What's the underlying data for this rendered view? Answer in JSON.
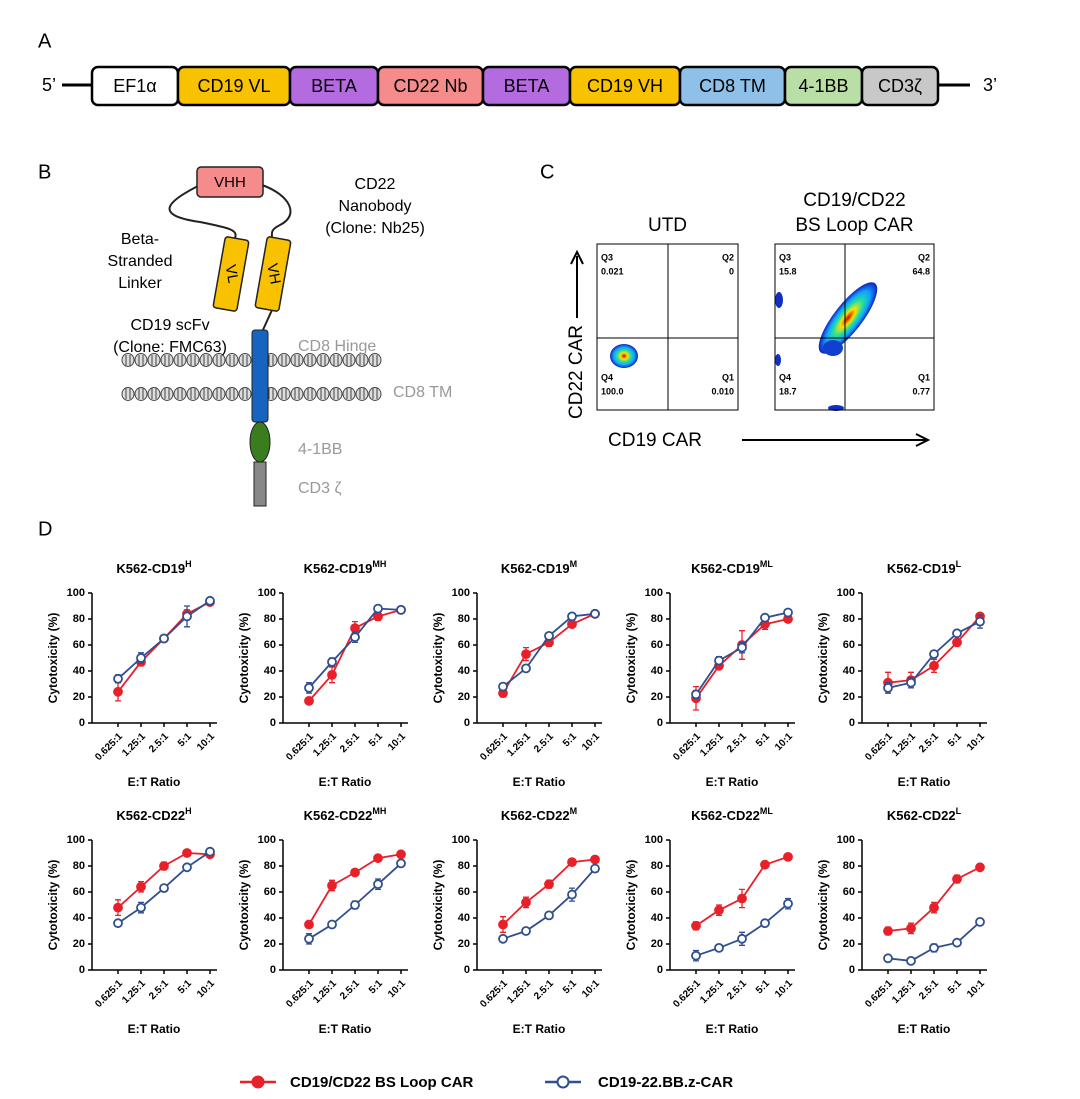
{
  "panel_labels": [
    "A",
    "B",
    "C",
    "D"
  ],
  "construct": {
    "left": "5’",
    "right": "3’",
    "segments": [
      {
        "label": "EF1α",
        "color": "#ffffff"
      },
      {
        "label": "CD19 VL",
        "color": "#f8c200"
      },
      {
        "label": "BETA",
        "color": "#b56be0"
      },
      {
        "label": "CD22 Nb",
        "color": "#f58b8b"
      },
      {
        "label": "BETA",
        "color": "#b56be0"
      },
      {
        "label": "CD19 VH",
        "color": "#f8c200"
      },
      {
        "label": "CD8 TM",
        "color": "#8fc1e8"
      },
      {
        "label": "4-1BB",
        "color": "#b9dea6"
      },
      {
        "label": "CD3ζ",
        "color": "#c8c8c8"
      }
    ]
  },
  "diagram": {
    "vhh": "VHH",
    "vl": "VL",
    "vh": "VH",
    "nanobody": [
      "CD22",
      "Nanobody",
      "(Clone: Nb25)"
    ],
    "linker": [
      "Beta-",
      "Stranded",
      "Linker"
    ],
    "scfv": [
      "CD19 scFv",
      "(Clone: FMC63)"
    ],
    "hinge": "CD8 Hinge",
    "tm": "CD8 TM",
    "costim": "4-1BB",
    "cd3": "CD3 ζ"
  },
  "flow": {
    "y_label": "CD22 CAR",
    "x_label": "CD19 CAR",
    "plots": [
      {
        "title": [
          "UTD"
        ],
        "quadrants": [
          {
            "name": "Q3",
            "value": "0.021"
          },
          {
            "name": "Q2",
            "value": "0"
          },
          {
            "name": "Q4",
            "value": "100.0"
          },
          {
            "name": "Q1",
            "value": "0.010"
          }
        ]
      },
      {
        "title": [
          "CD19/CD22",
          "BS Loop CAR"
        ],
        "quadrants": [
          {
            "name": "Q3",
            "value": "15.8"
          },
          {
            "name": "Q2",
            "value": "64.8"
          },
          {
            "name": "Q4",
            "value": "18.7"
          },
          {
            "name": "Q1",
            "value": "0.77"
          }
        ]
      }
    ]
  },
  "chart_data": [
    {
      "type": "line",
      "title": "K562-CD19",
      "title_sup": "H",
      "y_label": "Cytotoxicity (%)",
      "x_label": "E:T Ratio",
      "categories": [
        "0.625:1",
        "1.25:1",
        "2.5:1",
        "5:1",
        "10:1"
      ],
      "ylim": [
        0,
        100
      ],
      "yticks": [
        0,
        20,
        40,
        60,
        80,
        100
      ],
      "series": [
        {
          "name": "CD19/CD22 BS Loop CAR",
          "color": "#e8202a",
          "marker": "filled",
          "values": [
            24,
            47,
            65,
            84,
            93
          ],
          "errors": [
            7,
            3,
            2,
            3,
            1
          ]
        },
        {
          "name": "CD19-22.BB.z-CAR",
          "color": "#2f4f8f",
          "marker": "open",
          "values": [
            34,
            50,
            65,
            82,
            94
          ],
          "errors": [
            3,
            4,
            2,
            8,
            1
          ]
        }
      ]
    },
    {
      "type": "line",
      "title": "K562-CD19",
      "title_sup": "MH",
      "y_label": "Cytotoxicity (%)",
      "x_label": "E:T Ratio",
      "categories": [
        "0.625:1",
        "1.25:1",
        "2.5:1",
        "5:1",
        "10:1"
      ],
      "ylim": [
        0,
        100
      ],
      "yticks": [
        0,
        20,
        40,
        60,
        80,
        100
      ],
      "series": [
        {
          "name": "CD19/CD22 BS Loop CAR",
          "color": "#e8202a",
          "marker": "filled",
          "values": [
            17,
            37,
            73,
            82,
            87
          ],
          "errors": [
            1,
            6,
            5,
            3,
            1
          ]
        },
        {
          "name": "CD19-22.BB.z-CAR",
          "color": "#2f4f8f",
          "marker": "open",
          "values": [
            27,
            47,
            66,
            88,
            87
          ],
          "errors": [
            4,
            3,
            4,
            1,
            1
          ]
        }
      ]
    },
    {
      "type": "line",
      "title": "K562-CD19",
      "title_sup": "M",
      "y_label": "Cytotoxicity (%)",
      "x_label": "E:T Ratio",
      "categories": [
        "0.625:1",
        "1.25:1",
        "2.5:1",
        "5:1",
        "10:1"
      ],
      "ylim": [
        0,
        100
      ],
      "yticks": [
        0,
        20,
        40,
        60,
        80,
        100
      ],
      "series": [
        {
          "name": "CD19/CD22 BS Loop CAR",
          "color": "#e8202a",
          "marker": "filled",
          "values": [
            23,
            53,
            62,
            76,
            84
          ],
          "errors": [
            3,
            5,
            3,
            2,
            1
          ]
        },
        {
          "name": "CD19-22.BB.z-CAR",
          "color": "#2f4f8f",
          "marker": "open",
          "values": [
            28,
            42,
            67,
            82,
            84
          ],
          "errors": [
            1,
            2,
            2,
            1,
            1
          ]
        }
      ]
    },
    {
      "type": "line",
      "title": "K562-CD19",
      "title_sup": "ML",
      "y_label": "Cytotoxicity (%)",
      "x_label": "E:T Ratio",
      "categories": [
        "0.625:1",
        "1.25:1",
        "2.5:1",
        "5:1",
        "10:1"
      ],
      "ylim": [
        0,
        100
      ],
      "yticks": [
        0,
        20,
        40,
        60,
        80,
        100
      ],
      "series": [
        {
          "name": "CD19/CD22 BS Loop CAR",
          "color": "#e8202a",
          "marker": "filled",
          "values": [
            19,
            44,
            60,
            76,
            80
          ],
          "errors": [
            9,
            2,
            11,
            4,
            1
          ]
        },
        {
          "name": "CD19-22.BB.z-CAR",
          "color": "#2f4f8f",
          "marker": "open",
          "values": [
            22,
            48,
            58,
            81,
            85
          ],
          "errors": [
            3,
            3,
            4,
            1,
            1
          ]
        }
      ]
    },
    {
      "type": "line",
      "title": "K562-CD19",
      "title_sup": "L",
      "y_label": "Cytotoxicity (%)",
      "x_label": "E:T Ratio",
      "categories": [
        "0.625:1",
        "1.25:1",
        "2.5:1",
        "5:1",
        "10:1"
      ],
      "ylim": [
        0,
        100
      ],
      "yticks": [
        0,
        20,
        40,
        60,
        80,
        100
      ],
      "series": [
        {
          "name": "CD19/CD22 BS Loop CAR",
          "color": "#e8202a",
          "marker": "filled",
          "values": [
            31,
            33,
            44,
            62,
            82
          ],
          "errors": [
            8,
            6,
            5,
            2,
            2
          ]
        },
        {
          "name": "CD19-22.BB.z-CAR",
          "color": "#2f4f8f",
          "marker": "open",
          "values": [
            27,
            31,
            53,
            69,
            78
          ],
          "errors": [
            4,
            4,
            2,
            1,
            5
          ]
        }
      ]
    },
    {
      "type": "line",
      "title": "K562-CD22",
      "title_sup": "H",
      "y_label": "Cytotoxicity (%)",
      "x_label": "E:T Ratio",
      "categories": [
        "0.625:1",
        "1.25:1",
        "2.5:1",
        "5:1",
        "10:1"
      ],
      "ylim": [
        0,
        100
      ],
      "yticks": [
        0,
        20,
        40,
        60,
        80,
        100
      ],
      "series": [
        {
          "name": "CD19/CD22 BS Loop CAR",
          "color": "#e8202a",
          "marker": "filled",
          "values": [
            48,
            64,
            80,
            90,
            89
          ],
          "errors": [
            6,
            4,
            3,
            1,
            1
          ]
        },
        {
          "name": "CD19-22.BB.z-CAR",
          "color": "#2f4f8f",
          "marker": "open",
          "values": [
            36,
            48,
            63,
            79,
            91
          ],
          "errors": [
            1,
            4,
            2,
            1,
            1
          ]
        }
      ]
    },
    {
      "type": "line",
      "title": "K562-CD22",
      "title_sup": "MH",
      "y_label": "Cytotoxicity (%)",
      "x_label": "E:T Ratio",
      "categories": [
        "0.625:1",
        "1.25:1",
        "2.5:1",
        "5:1",
        "10:1"
      ],
      "ylim": [
        0,
        100
      ],
      "yticks": [
        0,
        20,
        40,
        60,
        80,
        100
      ],
      "series": [
        {
          "name": "CD19/CD22 BS Loop CAR",
          "color": "#e8202a",
          "marker": "filled",
          "values": [
            35,
            65,
            75,
            86,
            89
          ],
          "errors": [
            1,
            4,
            1,
            1,
            1
          ]
        },
        {
          "name": "CD19-22.BB.z-CAR",
          "color": "#2f4f8f",
          "marker": "open",
          "values": [
            24,
            35,
            50,
            66,
            82
          ],
          "errors": [
            4,
            1,
            3,
            4,
            1
          ]
        }
      ]
    },
    {
      "type": "line",
      "title": "K562-CD22",
      "title_sup": "M",
      "y_label": "Cytotoxicity (%)",
      "x_label": "E:T Ratio",
      "categories": [
        "0.625:1",
        "1.25:1",
        "2.5:1",
        "5:1",
        "10:1"
      ],
      "ylim": [
        0,
        100
      ],
      "yticks": [
        0,
        20,
        40,
        60,
        80,
        100
      ],
      "series": [
        {
          "name": "CD19/CD22 BS Loop CAR",
          "color": "#e8202a",
          "marker": "filled",
          "values": [
            35,
            52,
            66,
            83,
            85
          ],
          "errors": [
            6,
            4,
            3,
            2,
            1
          ]
        },
        {
          "name": "CD19-22.BB.z-CAR",
          "color": "#2f4f8f",
          "marker": "open",
          "values": [
            24,
            30,
            42,
            58,
            78
          ],
          "errors": [
            1,
            1,
            1,
            5,
            1
          ]
        }
      ]
    },
    {
      "type": "line",
      "title": "K562-CD22",
      "title_sup": "ML",
      "y_label": "Cytotoxicity (%)",
      "x_label": "E:T Ratio",
      "categories": [
        "0.625:1",
        "1.25:1",
        "2.5:1",
        "5:1",
        "10:1"
      ],
      "ylim": [
        0,
        100
      ],
      "yticks": [
        0,
        20,
        40,
        60,
        80,
        100
      ],
      "series": [
        {
          "name": "CD19/CD22 BS Loop CAR",
          "color": "#e8202a",
          "marker": "filled",
          "values": [
            34,
            46,
            55,
            81,
            87
          ],
          "errors": [
            3,
            4,
            7,
            1,
            1
          ]
        },
        {
          "name": "CD19-22.BB.z-CAR",
          "color": "#2f4f8f",
          "marker": "open",
          "values": [
            11,
            17,
            24,
            36,
            51
          ],
          "errors": [
            4,
            1,
            5,
            1,
            4
          ]
        }
      ]
    },
    {
      "type": "line",
      "title": "K562-CD22",
      "title_sup": "L",
      "y_label": "Cytotoxicity (%)",
      "x_label": "E:T Ratio",
      "categories": [
        "0.625:1",
        "1.25:1",
        "2.5:1",
        "5:1",
        "10:1"
      ],
      "ylim": [
        0,
        100
      ],
      "yticks": [
        0,
        20,
        40,
        60,
        80,
        100
      ],
      "series": [
        {
          "name": "CD19/CD22 BS Loop CAR",
          "color": "#e8202a",
          "marker": "filled",
          "values": [
            30,
            32,
            48,
            70,
            79
          ],
          "errors": [
            3,
            4,
            4,
            3,
            1
          ]
        },
        {
          "name": "CD19-22.BB.z-CAR",
          "color": "#2f4f8f",
          "marker": "open",
          "values": [
            9,
            7,
            17,
            21,
            37
          ],
          "errors": [
            1,
            2,
            3,
            2,
            2
          ]
        }
      ]
    }
  ]
}
